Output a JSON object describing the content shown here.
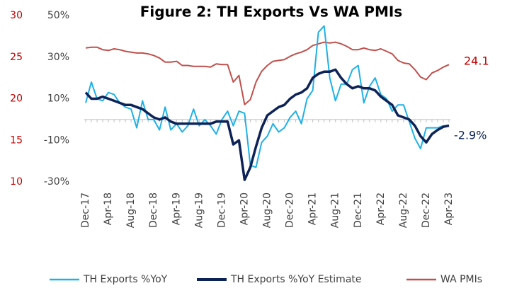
{
  "chart_data": {
    "type": "line",
    "title": "Figure 2: TH Exports Vs WA PMIs",
    "categories": [
      "Dec-17",
      null,
      null,
      null,
      "Apr-18",
      null,
      null,
      null,
      "Aug-18",
      null,
      null,
      null,
      "Dec-18",
      null,
      null,
      null,
      "Apr-19",
      null,
      null,
      null,
      "Aug-19",
      null,
      null,
      null,
      "Dec-19",
      null,
      null,
      null,
      "Apr-20",
      null,
      null,
      null,
      "Aug-20",
      null,
      null,
      null,
      "Dec-20",
      null,
      null,
      null,
      "Apr-21",
      null,
      null,
      null,
      "Aug-21",
      null,
      null,
      null,
      "Dec-21",
      null,
      null,
      null,
      "Apr-22",
      null,
      null,
      null,
      "Aug-22",
      null,
      null,
      null,
      "Dec-22",
      null,
      null,
      null,
      "Apr-23"
    ],
    "series": [
      {
        "name": "TH Exports %YoY",
        "color": "#1fb1e6",
        "values": [
          8,
          18,
          10,
          9,
          13,
          12,
          8,
          6,
          5,
          -4,
          9,
          0,
          0,
          -5,
          6,
          -5,
          -2,
          -6,
          -3,
          5,
          -3,
          0,
          -3,
          -7,
          0,
          4,
          -3,
          4,
          3,
          -22,
          -23,
          -11,
          -8,
          -2,
          -6,
          -4,
          1,
          4,
          -2,
          10,
          14,
          42,
          45,
          20,
          9,
          17,
          17,
          24,
          26,
          8,
          16,
          20,
          12,
          10,
          4,
          7,
          7,
          -1,
          -9,
          -14,
          -4,
          -4,
          -4,
          -3,
          -3
        ]
      },
      {
        "name": "TH Exports %YoY Estimate",
        "color": "#0d2357",
        "values": [
          13,
          10,
          10,
          11,
          10,
          9,
          8,
          7,
          7,
          6,
          5,
          3,
          1,
          0,
          1,
          -1,
          -2,
          -2,
          -2,
          -2,
          -2,
          -2,
          -2,
          -1,
          -1,
          -1,
          -12,
          -10,
          -29,
          -23,
          -13,
          -4,
          2,
          4,
          6,
          7,
          10,
          12,
          13,
          15,
          20,
          22,
          23,
          23,
          24,
          20,
          17,
          15,
          16,
          15,
          15,
          14,
          11,
          9,
          7,
          2,
          1,
          0,
          -3,
          -8,
          -11,
          -7,
          -5,
          -3.5,
          -2.9
        ]
      },
      {
        "name": "WA PMIs",
        "color": "#c0504d",
        "axis": "y2",
        "values": [
          26.1,
          26.2,
          26.2,
          25.9,
          25.8,
          26.0,
          25.9,
          25.7,
          25.6,
          25.5,
          25.5,
          25.4,
          25.2,
          24.9,
          24.4,
          24.4,
          24.5,
          24.0,
          24.0,
          23.9,
          23.9,
          23.9,
          23.8,
          24.2,
          24.1,
          24.1,
          22.0,
          22.8,
          19.3,
          19.9,
          22.0,
          23.3,
          24.0,
          24.5,
          24.6,
          24.7,
          25.1,
          25.4,
          25.6,
          25.9,
          26.4,
          26.6,
          26.8,
          26.7,
          26.8,
          26.6,
          26.3,
          25.9,
          25.9,
          26.1,
          25.9,
          25.8,
          26.0,
          25.7,
          25.4,
          24.6,
          24.3,
          24.2,
          23.5,
          22.6,
          22.3,
          23.1,
          23.4,
          23.8,
          24.1
        ]
      }
    ],
    "ylim": [
      -30,
      50
    ],
    "yticks": [
      {
        "value": -30,
        "label": "-30%"
      },
      {
        "value": -10,
        "label": "-10%"
      },
      {
        "value": 10,
        "label": "10%"
      },
      {
        "value": 30,
        "label": "30%"
      },
      {
        "value": 50,
        "label": "50%"
      }
    ],
    "y2lim": [
      10,
      30
    ],
    "y2ticks": [
      10,
      15,
      20,
      25,
      30
    ],
    "y2color": "#c00000",
    "annotations": [
      "24.1",
      "-2.9%"
    ],
    "grid": false,
    "legend": "bottom"
  }
}
